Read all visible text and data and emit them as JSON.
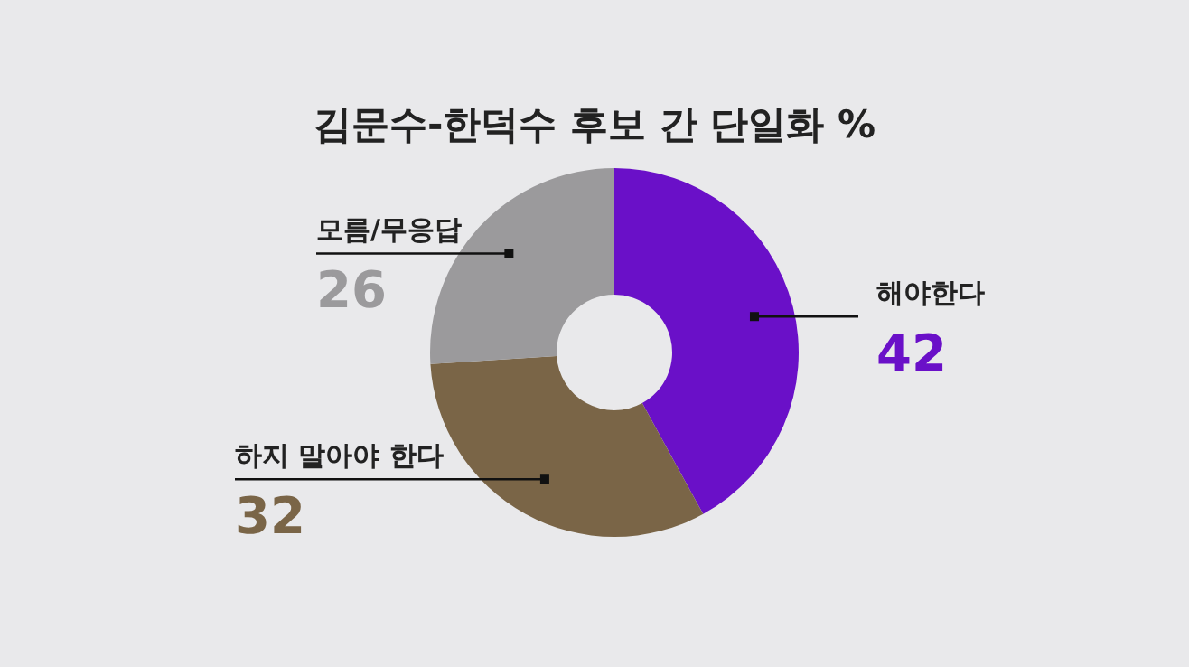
{
  "chart_data": {
    "type": "donut",
    "title": "김문수-한덕수 후보 간 단일화 %",
    "categories": [
      "해야한다",
      "하지 말아야 한다",
      "모름/무응답"
    ],
    "values": [
      42,
      32,
      26
    ],
    "colors": [
      "#6a10c8",
      "#7a6547",
      "#9b9a9c"
    ],
    "data_labels": true,
    "legend": false
  }
}
